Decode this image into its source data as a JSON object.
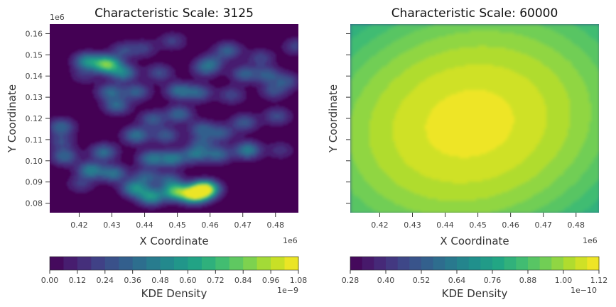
{
  "chart_data": [
    {
      "type": "heatmap",
      "title": "Characteristic Scale: 3125",
      "xlabel": "X Coordinate",
      "ylabel": "Y Coordinate",
      "x_offset_label": "1e6",
      "y_offset_label": "1e6",
      "xlim": [
        0.411,
        0.487
      ],
      "ylim": [
        0.0755,
        0.1645
      ],
      "x_ticks": [
        0.42,
        0.43,
        0.44,
        0.45,
        0.46,
        0.47,
        0.48
      ],
      "x_tick_labels": [
        "0.42",
        "0.43",
        "0.44",
        "0.45",
        "0.46",
        "0.47",
        "0.48"
      ],
      "y_ticks": [
        0.08,
        0.09,
        0.1,
        0.11,
        0.12,
        0.13,
        0.14,
        0.15,
        0.16
      ],
      "y_tick_labels": [
        "0.08",
        "0.09",
        "0.10",
        "0.11",
        "0.12",
        "0.13",
        "0.14",
        "0.15",
        "0.16"
      ],
      "colormap": "viridis",
      "levels": 18,
      "peaks": [
        {
          "x": 0.4585,
          "y": 0.0865,
          "amp": 1.08
        },
        {
          "x": 0.455,
          "y": 0.084,
          "amp": 0.9
        },
        {
          "x": 0.4495,
          "y": 0.0855,
          "amp": 0.72
        },
        {
          "x": 0.442,
          "y": 0.083,
          "amp": 0.55
        },
        {
          "x": 0.437,
          "y": 0.087,
          "amp": 0.5
        },
        {
          "x": 0.4285,
          "y": 0.1455,
          "amp": 0.82
        },
        {
          "x": 0.4225,
          "y": 0.147,
          "amp": 0.5
        },
        {
          "x": 0.4335,
          "y": 0.1415,
          "amp": 0.45
        },
        {
          "x": 0.4235,
          "y": 0.0955,
          "amp": 0.45
        },
        {
          "x": 0.4305,
          "y": 0.094,
          "amp": 0.4
        },
        {
          "x": 0.4155,
          "y": 0.102,
          "amp": 0.35
        },
        {
          "x": 0.4275,
          "y": 0.104,
          "amp": 0.38
        },
        {
          "x": 0.442,
          "y": 0.101,
          "amp": 0.4
        },
        {
          "x": 0.4485,
          "y": 0.101,
          "amp": 0.42
        },
        {
          "x": 0.4555,
          "y": 0.103,
          "amp": 0.38
        },
        {
          "x": 0.4625,
          "y": 0.103,
          "amp": 0.35
        },
        {
          "x": 0.4715,
          "y": 0.105,
          "amp": 0.45
        },
        {
          "x": 0.4375,
          "y": 0.112,
          "amp": 0.4
        },
        {
          "x": 0.4465,
          "y": 0.112,
          "amp": 0.3
        },
        {
          "x": 0.4145,
          "y": 0.116,
          "amp": 0.35
        },
        {
          "x": 0.4425,
          "y": 0.1195,
          "amp": 0.3
        },
        {
          "x": 0.4505,
          "y": 0.122,
          "amp": 0.35
        },
        {
          "x": 0.4575,
          "y": 0.115,
          "amp": 0.3
        },
        {
          "x": 0.4635,
          "y": 0.113,
          "amp": 0.28
        },
        {
          "x": 0.4705,
          "y": 0.118,
          "amp": 0.3
        },
        {
          "x": 0.4805,
          "y": 0.121,
          "amp": 0.25
        },
        {
          "x": 0.4315,
          "y": 0.126,
          "amp": 0.35
        },
        {
          "x": 0.4295,
          "y": 0.1325,
          "amp": 0.35
        },
        {
          "x": 0.4375,
          "y": 0.1325,
          "amp": 0.32
        },
        {
          "x": 0.4505,
          "y": 0.133,
          "amp": 0.38
        },
        {
          "x": 0.4565,
          "y": 0.132,
          "amp": 0.32
        },
        {
          "x": 0.4445,
          "y": 0.1415,
          "amp": 0.25
        },
        {
          "x": 0.4585,
          "y": 0.1435,
          "amp": 0.28
        },
        {
          "x": 0.4705,
          "y": 0.141,
          "amp": 0.32
        },
        {
          "x": 0.4775,
          "y": 0.1405,
          "amp": 0.3
        },
        {
          "x": 0.4835,
          "y": 0.1375,
          "amp": 0.25
        },
        {
          "x": 0.4655,
          "y": 0.152,
          "amp": 0.32
        },
        {
          "x": 0.4605,
          "y": 0.1465,
          "amp": 0.25
        },
        {
          "x": 0.4755,
          "y": 0.1485,
          "amp": 0.22
        },
        {
          "x": 0.4865,
          "y": 0.154,
          "amp": 0.22
        },
        {
          "x": 0.4485,
          "y": 0.1565,
          "amp": 0.2
        },
        {
          "x": 0.4395,
          "y": 0.153,
          "amp": 0.2
        },
        {
          "x": 0.4405,
          "y": 0.0925,
          "amp": 0.3
        },
        {
          "x": 0.4475,
          "y": 0.091,
          "amp": 0.28
        },
        {
          "x": 0.4205,
          "y": 0.089,
          "amp": 0.18
        },
        {
          "x": 0.4145,
          "y": 0.109,
          "amp": 0.22
        },
        {
          "x": 0.4215,
          "y": 0.1405,
          "amp": 0.15
        },
        {
          "x": 0.4335,
          "y": 0.152,
          "amp": 0.22
        },
        {
          "x": 0.4795,
          "y": 0.133,
          "amp": 0.25
        },
        {
          "x": 0.4575,
          "y": 0.1085,
          "amp": 0.25
        },
        {
          "x": 0.4815,
          "y": 0.105,
          "amp": 0.15
        },
        {
          "x": 0.4665,
          "y": 0.131,
          "amp": 0.22
        }
      ],
      "colorbar": {
        "label": "KDE Density",
        "offset_label": "1e−9",
        "min": 0.0,
        "max": 1.08,
        "ticks": [
          0.0,
          0.12,
          0.24,
          0.36,
          0.48,
          0.6,
          0.72,
          0.84,
          0.96,
          1.08
        ],
        "tick_labels": [
          "0.00",
          "0.12",
          "0.24",
          "0.36",
          "0.48",
          "0.60",
          "0.72",
          "0.84",
          "0.96",
          "1.08"
        ]
      }
    },
    {
      "type": "heatmap",
      "title": "Characteristic Scale: 60000",
      "xlabel": "X Coordinate",
      "ylabel": "Y Coordinate",
      "x_offset_label": "1e6",
      "xlim": [
        0.411,
        0.487
      ],
      "ylim": [
        0.0755,
        0.1645
      ],
      "x_ticks": [
        0.42,
        0.43,
        0.44,
        0.45,
        0.46,
        0.47,
        0.48
      ],
      "x_tick_labels": [
        "0.42",
        "0.43",
        "0.44",
        "0.45",
        "0.46",
        "0.47",
        "0.48"
      ],
      "y_ticks": [
        0.08,
        0.09,
        0.1,
        0.11,
        0.12,
        0.13,
        0.14,
        0.15,
        0.16
      ],
      "colormap": "viridis",
      "levels": 21,
      "center": {
        "x": 0.4475,
        "y": 0.1175
      },
      "colorbar": {
        "label": "KDE Density",
        "offset_label": "1e−10",
        "min": 0.28,
        "max": 1.12,
        "ticks": [
          0.28,
          0.4,
          0.52,
          0.64,
          0.76,
          0.88,
          1.0,
          1.12
        ],
        "tick_labels": [
          "0.28",
          "0.40",
          "0.52",
          "0.64",
          "0.76",
          "0.88",
          "1.00",
          "1.12"
        ]
      }
    }
  ]
}
